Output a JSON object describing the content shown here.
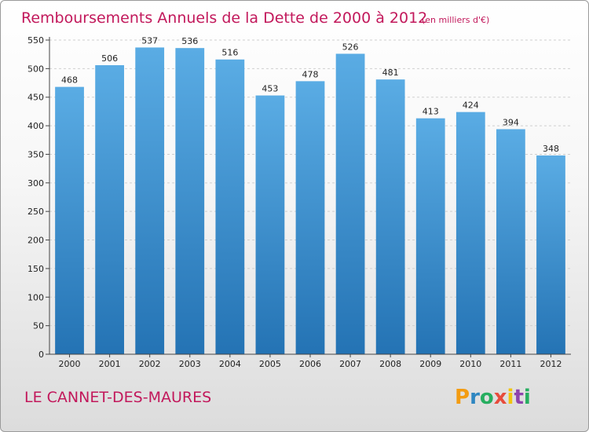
{
  "chart_data": {
    "type": "bar",
    "title": "Remboursements Annuels de la Dette de 2000 à 2012",
    "subtitle": "(en milliers d'€)",
    "xlabel": "",
    "ylabel": "",
    "categories": [
      "2000",
      "2001",
      "2002",
      "2003",
      "2004",
      "2005",
      "2006",
      "2007",
      "2008",
      "2009",
      "2010",
      "2011",
      "2012"
    ],
    "values": [
      468,
      506,
      537,
      536,
      516,
      453,
      478,
      526,
      481,
      413,
      424,
      394,
      348
    ],
    "ylim": [
      0,
      550
    ],
    "yticks": [
      0,
      50,
      100,
      150,
      200,
      250,
      300,
      350,
      400,
      450,
      500,
      550
    ],
    "grid": true,
    "bar_color_top": "#5aace4",
    "bar_color_bottom": "#2473b4"
  },
  "commune_name": "LE CANNET-DES-MAURES",
  "logo": {
    "letters": [
      "P",
      "r",
      "o",
      "x",
      "i",
      "t",
      "i"
    ],
    "colors": [
      "#f39c12",
      "#2e86c1",
      "#27ae60",
      "#e74c3c",
      "#f1c40f",
      "#8e44ad",
      "#27ae60"
    ]
  }
}
